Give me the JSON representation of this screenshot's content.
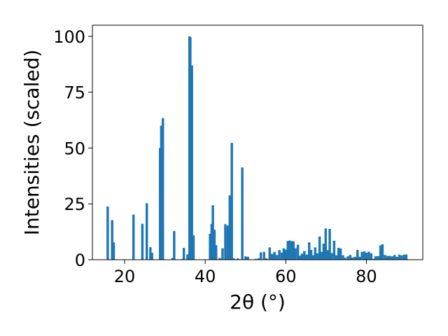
{
  "chart_data": {
    "type": "bar",
    "xlabel": "2θ (°)",
    "ylabel": "Intensities (scaled)",
    "xlim": [
      12,
      94
    ],
    "ylim": [
      0,
      105
    ],
    "xticks": [
      20,
      40,
      60,
      80
    ],
    "yticks": [
      0,
      25,
      50,
      75,
      100
    ],
    "grid": false,
    "bar_width": 0.6,
    "color": "#1f77b4",
    "x": [
      15.8,
      16.9,
      17.3,
      22.2,
      24.4,
      25.5,
      26.4,
      26.8,
      28.8,
      29.1,
      29.5,
      31.9,
      32.3,
      34.3,
      34.7,
      35.6,
      36.1,
      36.3,
      36.7,
      37.1,
      41.2,
      41.6,
      41.9,
      42.3,
      42.7,
      43.6,
      44.3,
      45.0,
      45.6,
      46.1,
      46.6,
      47.1,
      48.1,
      49.2,
      50.0,
      50.6,
      52.5,
      53.2,
      53.8,
      54.6,
      55.2,
      56.0,
      56.6,
      57.2,
      57.8,
      58.4,
      59.0,
      59.5,
      60.0,
      60.5,
      61.0,
      61.4,
      61.9,
      62.4,
      63.0,
      63.5,
      64.0,
      64.6,
      65.2,
      65.8,
      66.3,
      66.8,
      67.3,
      67.9,
      68.4,
      68.9,
      69.4,
      69.9,
      70.4,
      70.9,
      71.4,
      72.0,
      72.5,
      73.1,
      73.6,
      74.2,
      74.7,
      75.4,
      76.0,
      76.6,
      77.2,
      77.8,
      78.4,
      78.9,
      79.5,
      80.0,
      80.6,
      81.2,
      81.8,
      82.3,
      82.9,
      83.5,
      84.0,
      84.6,
      85.2,
      85.8,
      86.4,
      87.0,
      87.6,
      88.2,
      88.8,
      89.4,
      89.9
    ],
    "values": [
      23.8,
      17.7,
      7.8,
      20.2,
      16.1,
      25.3,
      5.6,
      3.1,
      50.0,
      60.0,
      63.4,
      0.8,
      12.8,
      0.3,
      5.3,
      2.4,
      100.0,
      99.6,
      87.0,
      10.9,
      11.6,
      16.0,
      24.4,
      13.4,
      6.5,
      0.8,
      5.1,
      15.9,
      15.3,
      28.8,
      52.3,
      0.6,
      0.6,
      41.3,
      1.5,
      1.3,
      0.4,
      0.6,
      3.3,
      3.5,
      0.6,
      5.5,
      2.6,
      3.5,
      2.1,
      4.3,
      3.2,
      5.1,
      4.5,
      8.4,
      8.6,
      8.3,
      8.3,
      5.1,
      6.7,
      1.8,
      2.7,
      3.9,
      2.3,
      7.8,
      4.4,
      2.0,
      5.5,
      2.9,
      10.4,
      3.5,
      7.2,
      14.0,
      4.3,
      13.8,
      3.0,
      8.5,
      2.0,
      5.3,
      5.0,
      2.0,
      0.9,
      1.5,
      2.1,
      1.0,
      1.3,
      4.4,
      1.3,
      3.5,
      3.8,
      3.1,
      3.6,
      2.9,
      0.4,
      1.6,
      1.6,
      6.4,
      6.9,
      2.1,
      1.7,
      1.7,
      1.5,
      2.1,
      1.3,
      2.3,
      1.9,
      2.3,
      2.3
    ]
  }
}
